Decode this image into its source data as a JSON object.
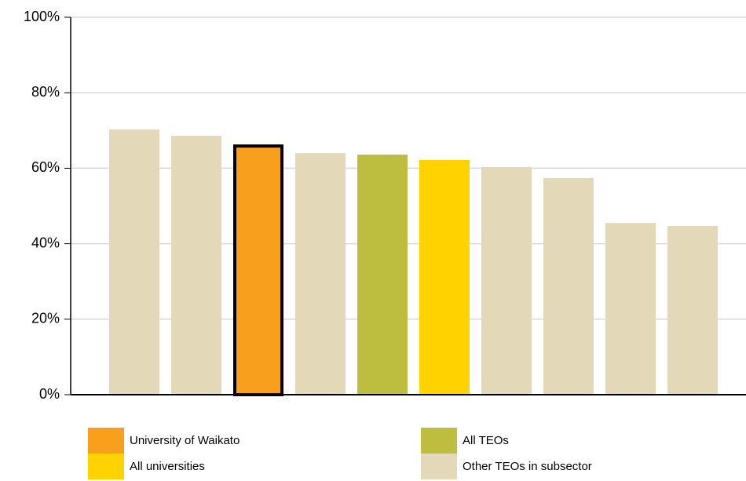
{
  "chart_data": {
    "type": "bar",
    "categories": [
      null,
      null,
      null,
      null,
      null,
      null,
      null,
      null,
      null,
      null
    ],
    "values": [
      70.3,
      68.6,
      66.3,
      64.0,
      63.6,
      62.2,
      60.3,
      57.4,
      45.5,
      44.7
    ],
    "colors": [
      "#e3d9b8",
      "#e3d9b8",
      "#f99f1e",
      "#e3d9b8",
      "#bdbe3f",
      "#ffd200",
      "#e3d9b8",
      "#e3d9b8",
      "#e3d9b8",
      "#e3d9b8"
    ],
    "outlined": [
      false,
      false,
      true,
      false,
      false,
      false,
      false,
      false,
      false,
      false
    ],
    "ylim": [
      0,
      100
    ],
    "yticks": [
      {
        "value": 0,
        "label": "0%"
      },
      {
        "value": 20,
        "label": "20%"
      },
      {
        "value": 40,
        "label": "40%"
      },
      {
        "value": 60,
        "label": "60%"
      },
      {
        "value": 80,
        "label": "80%"
      },
      {
        "value": 100,
        "label": "100%"
      }
    ],
    "grid": true,
    "legend": [
      {
        "name": "University of Waikato",
        "color": "#f99f1e"
      },
      {
        "name": "All universities",
        "color": "#ffd200"
      },
      {
        "name": "All TEOs",
        "color": "#bdbe3f"
      },
      {
        "name": "Other TEOs in subsector",
        "color": "#e3d9b8"
      }
    ]
  }
}
